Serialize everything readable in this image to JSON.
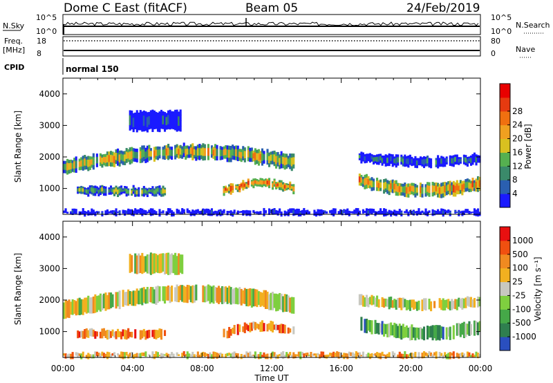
{
  "header": {
    "title": "Dome C East (fitACF)",
    "beam": "Beam 05",
    "date": "24/Feb/2019"
  },
  "top_panels": {
    "nsky_label": "N.Sky",
    "nsky_ticks": [
      "10^5",
      "10^0"
    ],
    "nsearch_label": "N.Search",
    "nsearch_ticks": [
      "10^5",
      "10^0"
    ],
    "freq_label": "Freq.",
    "freq_unit": "[MHz]",
    "freq_ticks": [
      "18",
      "8"
    ],
    "nave_label": "Nave",
    "nave_ticks": [
      "80",
      "0"
    ],
    "cpid_label": "CPID",
    "cpid_value": "normal 150"
  },
  "chart_data": [
    {
      "type": "heatmap",
      "parameter": "Power",
      "ylabel": "Slant Range [km]",
      "xlabel": "Time UT",
      "xlim": [
        0,
        24
      ],
      "ylim": [
        180,
        4500
      ],
      "y_ticks": [
        1000,
        2000,
        3000,
        4000
      ],
      "x_tick_labels": [
        "00:00",
        "04:00",
        "08:00",
        "12:00",
        "16:00",
        "20:00",
        "00:00"
      ],
      "colorbar": {
        "label": "Power [dB]",
        "ticks": [
          "4",
          "8",
          "12",
          "16",
          "20",
          "24",
          "28"
        ],
        "colors": [
          "#1a1aff",
          "#2a5fb0",
          "#3a8a6a",
          "#55b050",
          "#d8c020",
          "#f0a020",
          "#f07010",
          "#e63a10",
          "#e80000"
        ]
      },
      "bands": [
        {
          "t0": 0.0,
          "t1": 13.2,
          "r0": 1450,
          "r1": 1900,
          "rise": 500,
          "shape": "ramp",
          "level": 0.62
        },
        {
          "t0": 0.8,
          "t1": 5.8,
          "r0": 800,
          "r1": 1050,
          "rise": 0,
          "shape": "flat",
          "level": 0.45
        },
        {
          "t0": 9.2,
          "t1": 13.2,
          "r0": 800,
          "r1": 1050,
          "rise": 250,
          "shape": "ramp",
          "level": 0.78
        },
        {
          "t0": 3.8,
          "t1": 6.8,
          "r0": 2850,
          "r1": 3450,
          "rise": 0,
          "shape": "flat",
          "level": 0.2
        },
        {
          "t0": 17.0,
          "t1": 24.0,
          "r0": 1850,
          "r1": 2150,
          "rise": -150,
          "shape": "ramp",
          "level": 0.25
        },
        {
          "t0": 17.0,
          "t1": 24.0,
          "r0": 1050,
          "r1": 1450,
          "rise": -300,
          "shape": "ramp",
          "level": 0.7
        },
        {
          "t0": 0.0,
          "t1": 24.0,
          "r0": 180,
          "r1": 320,
          "rise": 0,
          "shape": "flat",
          "level": 0.05
        }
      ]
    },
    {
      "type": "heatmap",
      "parameter": "Velocity",
      "ylabel": "Slant Range [km]",
      "xlabel": "Time UT",
      "xlim": [
        0,
        24
      ],
      "ylim": [
        180,
        4500
      ],
      "y_ticks": [
        1000,
        2000,
        3000,
        4000
      ],
      "x_tick_labels": [
        "00:00",
        "04:00",
        "08:00",
        "12:00",
        "16:00",
        "20:00",
        "00:00"
      ],
      "colorbar": {
        "label": "Velocity [m s⁻¹]",
        "ticks": [
          "1000",
          "500",
          "100",
          "25",
          "-25",
          "-100",
          "-500",
          "-1000"
        ],
        "colors": [
          "#2a4fbf",
          "#2f7f4f",
          "#45a848",
          "#7fcf3f",
          "#c8c8c0",
          "#f2b020",
          "#f08a20",
          "#f05010",
          "#e81010"
        ]
      },
      "bands": [
        {
          "t0": 0.0,
          "t1": 13.2,
          "r0": 1450,
          "r1": 1950,
          "rise": 500,
          "shape": "ramp",
          "level": 0.5
        },
        {
          "t0": 0.8,
          "t1": 5.8,
          "r0": 800,
          "r1": 1050,
          "rise": 0,
          "shape": "flat",
          "level": 0.72
        },
        {
          "t0": 9.2,
          "t1": 13.2,
          "r0": 800,
          "r1": 1050,
          "rise": 250,
          "shape": "ramp",
          "level": 0.75
        },
        {
          "t0": 3.8,
          "t1": 6.8,
          "r0": 2850,
          "r1": 3450,
          "rise": 0,
          "shape": "flat",
          "level": 0.5
        },
        {
          "t0": 17.0,
          "t1": 24.0,
          "r0": 1850,
          "r1": 2150,
          "rise": -150,
          "shape": "ramp",
          "level": 0.5
        },
        {
          "t0": 17.0,
          "t1": 24.0,
          "r0": 1050,
          "r1": 1450,
          "rise": -300,
          "shape": "ramp",
          "level": 0.3
        },
        {
          "t0": 0.0,
          "t1": 24.0,
          "r0": 180,
          "r1": 320,
          "rise": 0,
          "shape": "flat",
          "level": 0.6
        }
      ]
    }
  ]
}
